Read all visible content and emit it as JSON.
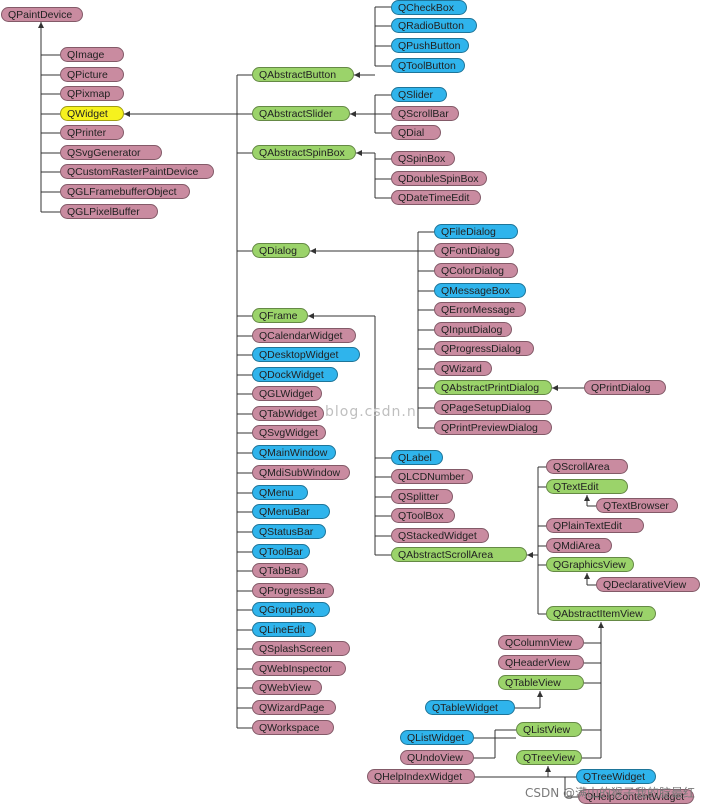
{
  "colors": {
    "pink": "#c98ba0",
    "green": "#9bd36a",
    "blue": "#2fb4ec",
    "yellow": "#f6f21e",
    "line": "#333333"
  },
  "nodes": {
    "qpaintdevice": "QPaintDevice",
    "qimage": "QImage",
    "qpicture": "QPicture",
    "qpixmap": "QPixmap",
    "qwidget": "QWidget",
    "qprinter": "QPrinter",
    "qsvggenerator": "QSvgGenerator",
    "qcustomrasterpaintdevice": "QCustomRasterPaintDevice",
    "qglframebufferobject": "QGLFramebufferObject",
    "qglpixelbuffer": "QGLPixelBuffer",
    "qabstractbutton": "QAbstractButton",
    "qcheckbox": "QCheckBox",
    "qradiobutton": "QRadioButton",
    "qpushbutton": "QPushButton",
    "qtoolbutton": "QToolButton",
    "qabstractslider": "QAbstractSlider",
    "qslider": "QSlider",
    "qscrollbar": "QScrollBar",
    "qdial": "QDial",
    "qabstractspinbox": "QAbstractSpinBox",
    "qspinbox": "QSpinBox",
    "qdoublespinbox": "QDoubleSpinBox",
    "qdatetimeedit": "QDateTimeEdit",
    "qdialog": "QDialog",
    "qfiledialog": "QFileDialog",
    "qfontdialog": "QFontDialog",
    "qcolordialog": "QColorDialog",
    "qmessagebox": "QMessageBox",
    "qerrormessage": "QErrorMessage",
    "qinputdialog": "QInputDialog",
    "qprogressdialog": "QProgressDialog",
    "qwizard": "QWizard",
    "qabstractprintdialog": "QAbstractPrintDialog",
    "qprintdialog": "QPrintDialog",
    "qpagesetupdialog": "QPageSetupDialog",
    "qprintpreviewdialog": "QPrintPreviewDialog",
    "qframe": "QFrame",
    "qcalendarwidget": "QCalendarWidget",
    "qdesktopwidget": "QDesktopWidget",
    "qdockwidget": "QDockWidget",
    "qglwidget": "QGLWidget",
    "qtabwidget": "QTabWidget",
    "qsvgwidget": "QSvgWidget",
    "qmainwindow": "QMainWindow",
    "qmdisubwindow": "QMdiSubWindow",
    "qmenu": "QMenu",
    "qmenubar": "QMenuBar",
    "qstatusbar": "QStatusBar",
    "qtoolbar": "QToolBar",
    "qtabbar": "QTabBar",
    "qprogressbar": "QProgressBar",
    "qgroupbox": "QGroupBox",
    "qlineedit": "QLineEdit",
    "qsplashscreen": "QSplashScreen",
    "qwebinspector": "QWebInspector",
    "qwebview": "QWebView",
    "qwizardpage": "QWizardPage",
    "qworkspace": "QWorkspace",
    "qlabel": "QLabel",
    "qlcdnumber": "QLCDNumber",
    "qsplitter": "QSplitter",
    "qtoolbox": "QToolBox",
    "qstackedwidget": "QStackedWidget",
    "qabstractscrollarea": "QAbstractScrollArea",
    "qscrollarea": "QScrollArea",
    "qtextedit": "QTextEdit",
    "qtextbrowser": "QTextBrowser",
    "qplaintextedit": "QPlainTextEdit",
    "qmdiarea": "QMdiArea",
    "qgraphicsview": "QGraphicsView",
    "qdeclarativeview": "QDeclarativeView",
    "qabstractitemview": "QAbstractItemView",
    "qcolumnview": "QColumnView",
    "qheaderview": "QHeaderView",
    "qtableview": "QTableView",
    "qtablewidget": "QTableWidget",
    "qlistview": "QListView",
    "qlistwidget": "QListWidget",
    "qundoview": "QUndoView",
    "qtreeview": "QTreeView",
    "qtreewidget": "QTreeWidget",
    "qhelpindexwidget": "QHelpIndexWidget",
    "qhelpcontentwidget": "QHelpContentWidget"
  },
  "watermark": "blog.csdn.n",
  "footer": "CSDN @满山的猴子我的腚最红"
}
